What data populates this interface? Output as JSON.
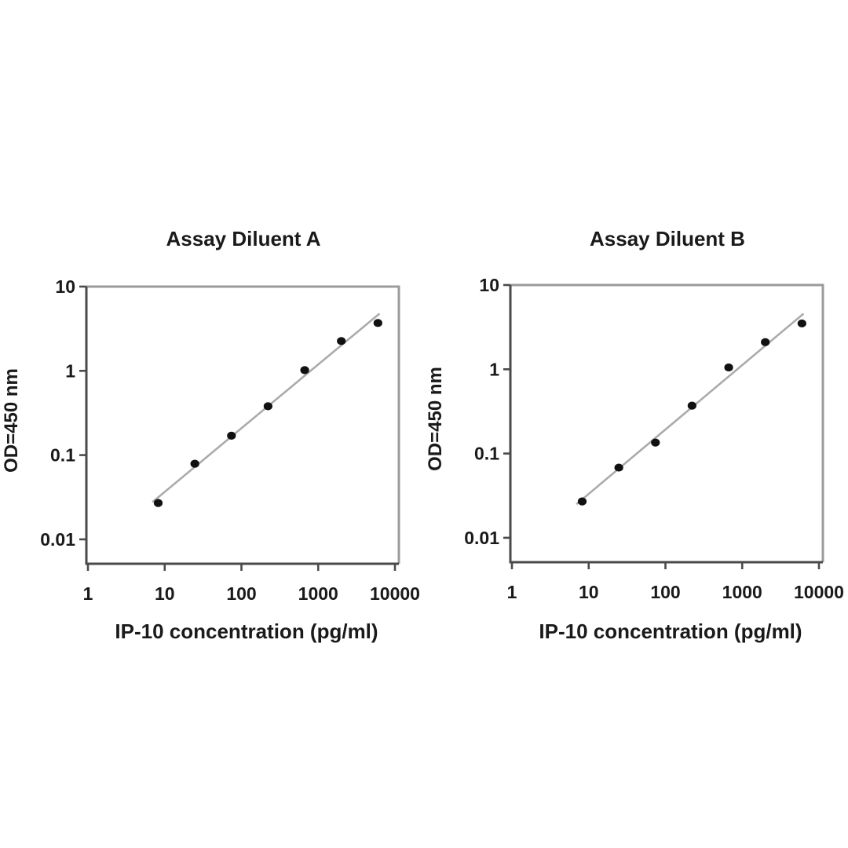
{
  "figure": {
    "background": "#ffffff",
    "text_color": "#1a1a1a",
    "axis_dark_color": "#4a4a4a",
    "axis_light_color": "#9b9b9b"
  },
  "chart_data": [
    {
      "type": "scatter",
      "title": "Assay Diluent A",
      "xlabel": "IP-10 concentration (pg/ml)",
      "ylabel": "OD=450 nm",
      "x_scale": "log",
      "y_scale": "log",
      "xlim": [
        1,
        11000
      ],
      "ylim": [
        0.005,
        10
      ],
      "x_ticks": [
        "1",
        "10",
        "100",
        "1000",
        "10000"
      ],
      "y_ticks": [
        "10",
        "1",
        "0.1",
        "0.01"
      ],
      "x": [
        8.23,
        24.7,
        74.1,
        222,
        667,
        2000,
        6000
      ],
      "y": [
        0.027,
        0.079,
        0.17,
        0.38,
        1.02,
        2.26,
        3.7
      ],
      "trendline": "linear-fit-loglog",
      "legend": "none",
      "grid": "off",
      "marker": "filled-circle",
      "marker_color": "#111111",
      "line_color": "#ababab"
    },
    {
      "type": "scatter",
      "title": "Assay Diluent B",
      "xlabel": "IP-10 concentration (pg/ml)",
      "ylabel": "OD=450 nm",
      "x_scale": "log",
      "y_scale": "log",
      "xlim": [
        1,
        11000
      ],
      "ylim": [
        0.005,
        10
      ],
      "x_ticks": [
        "1",
        "10",
        "100",
        "1000",
        "10000"
      ],
      "y_ticks": [
        "10",
        "1",
        "0.1",
        "0.01"
      ],
      "x": [
        8.23,
        24.7,
        74.1,
        222,
        667,
        2000,
        6000
      ],
      "y": [
        0.027,
        0.068,
        0.135,
        0.37,
        1.05,
        2.1,
        3.5
      ],
      "trendline": "linear-fit-loglog",
      "legend": "none",
      "grid": "off",
      "marker": "filled-circle",
      "marker_color": "#111111",
      "line_color": "#ababab"
    }
  ]
}
